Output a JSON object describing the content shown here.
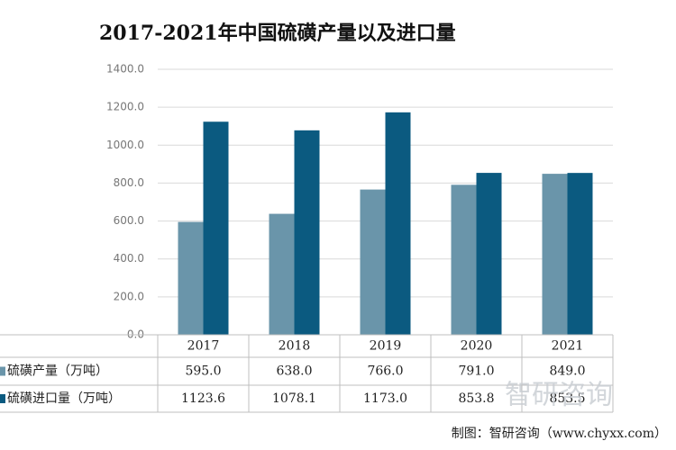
{
  "chart_data": {
    "type": "bar",
    "title": "2017-2021年中国硫磺产量以及进口量",
    "categories": [
      "2017",
      "2018",
      "2019",
      "2020",
      "2021"
    ],
    "series": [
      {
        "name": "硫磺产量（万吨）",
        "color": "#6a95aa",
        "values": [
          595.0,
          638.0,
          766.0,
          791.0,
          849.0
        ],
        "value_labels": [
          "595.0",
          "638.0",
          "766.0",
          "791.0",
          "849.0"
        ]
      },
      {
        "name": "硫磺进口量（万吨）",
        "color": "#0b5a80",
        "values": [
          1123.6,
          1078.1,
          1173.0,
          853.8,
          853.5
        ],
        "value_labels": [
          "1123.6",
          "1078.1",
          "1173.0",
          "853.8",
          "853.5"
        ]
      }
    ],
    "ylim": [
      0,
      1400
    ],
    "yticks": [
      {
        "value": 0,
        "label": "0.0"
      },
      {
        "value": 200,
        "label": "200.0"
      },
      {
        "value": 400,
        "label": "400.0"
      },
      {
        "value": 600,
        "label": "600.0"
      },
      {
        "value": 800,
        "label": "800.0"
      },
      {
        "value": 1000,
        "label": "1000.0"
      },
      {
        "value": 1200,
        "label": "1200.0"
      },
      {
        "value": 1400,
        "label": "1400.0"
      }
    ],
    "grid": true,
    "source": "制图：智研咨询（www.chyxx.com）",
    "watermark": "智研咨询"
  }
}
